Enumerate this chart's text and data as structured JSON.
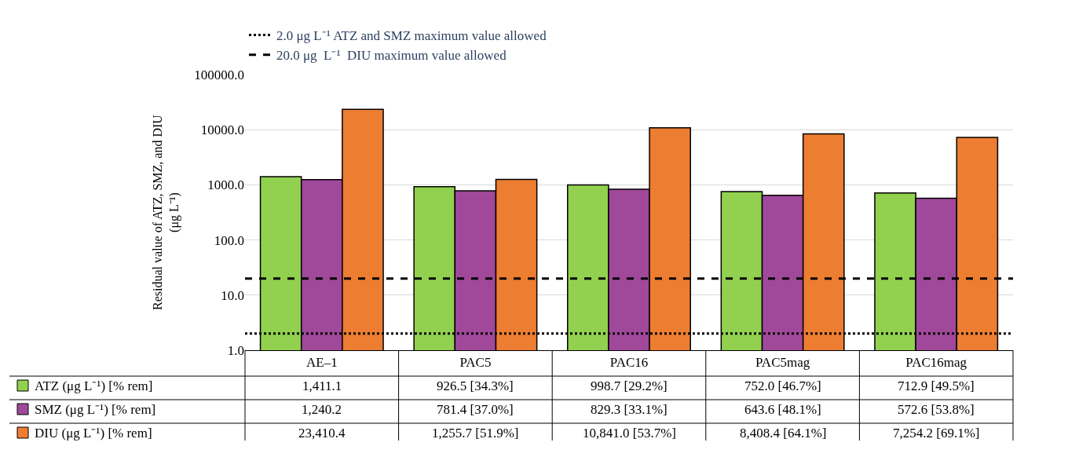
{
  "chart_data": {
    "type": "bar",
    "ylabel": "Residual value of ATZ, SMZ, and DIU\n(μg L⁻¹)",
    "categories": [
      "AE–1",
      "PAC5",
      "PAC16",
      "PAC5mag",
      "PAC16mag"
    ],
    "series": [
      {
        "name": "ATZ (μg L⁻¹) [% rem]",
        "color": "#92d050",
        "values": [
          1411.1,
          926.5,
          998.7,
          752.0,
          712.9
        ],
        "value_labels": [
          "1,411.1",
          "926.5 [34.3%]",
          "998.7 [29.2%]",
          "752.0 [46.7%]",
          "712.9 [49.5%]"
        ]
      },
      {
        "name": "SMZ (μg L⁻¹) [% rem]",
        "color": "#a0489a",
        "values": [
          1240.2,
          781.4,
          829.3,
          643.6,
          572.6
        ],
        "value_labels": [
          "1,240.2",
          "781.4 [37.0%]",
          "829.3 [33.1%]",
          "643.6 [48.1%]",
          "572.6 [53.8%]"
        ]
      },
      {
        "name": "DIU (μg L⁻¹) [% rem]",
        "color": "#ed7d31",
        "values": [
          23410.4,
          1255.7,
          10841.0,
          8408.4,
          7254.2
        ],
        "value_labels": [
          "23,410.4",
          "1,255.7 [51.9%]",
          "10,841.0 [53.7%]",
          "8,408.4 [64.1%]",
          "7,254.2 [69.1%]"
        ]
      }
    ],
    "log": true,
    "ylim": [
      1,
      100000
    ],
    "yticks": [
      {
        "value": 1,
        "label": "1.0"
      },
      {
        "value": 10,
        "label": "10.0"
      },
      {
        "value": 100,
        "label": "100.0"
      },
      {
        "value": 1000,
        "label": "1000.0"
      },
      {
        "value": 10000,
        "label": "10000.0"
      },
      {
        "value": 100000,
        "label": "100000.0"
      }
    ],
    "grid": "y",
    "legend": "bottom left",
    "ref_lines": [
      {
        "axis": "y",
        "value": 2.0,
        "label": "2.0 μg L⁻¹ ATZ and SMZ maximum value allowed",
        "line_style": "dotted",
        "color": "#000000"
      },
      {
        "axis": "y",
        "value": 20.0,
        "label": "20.0 μg  L⁻¹  DIU maximum value allowed",
        "line_style": "dashed",
        "color": "#000000"
      }
    ]
  }
}
